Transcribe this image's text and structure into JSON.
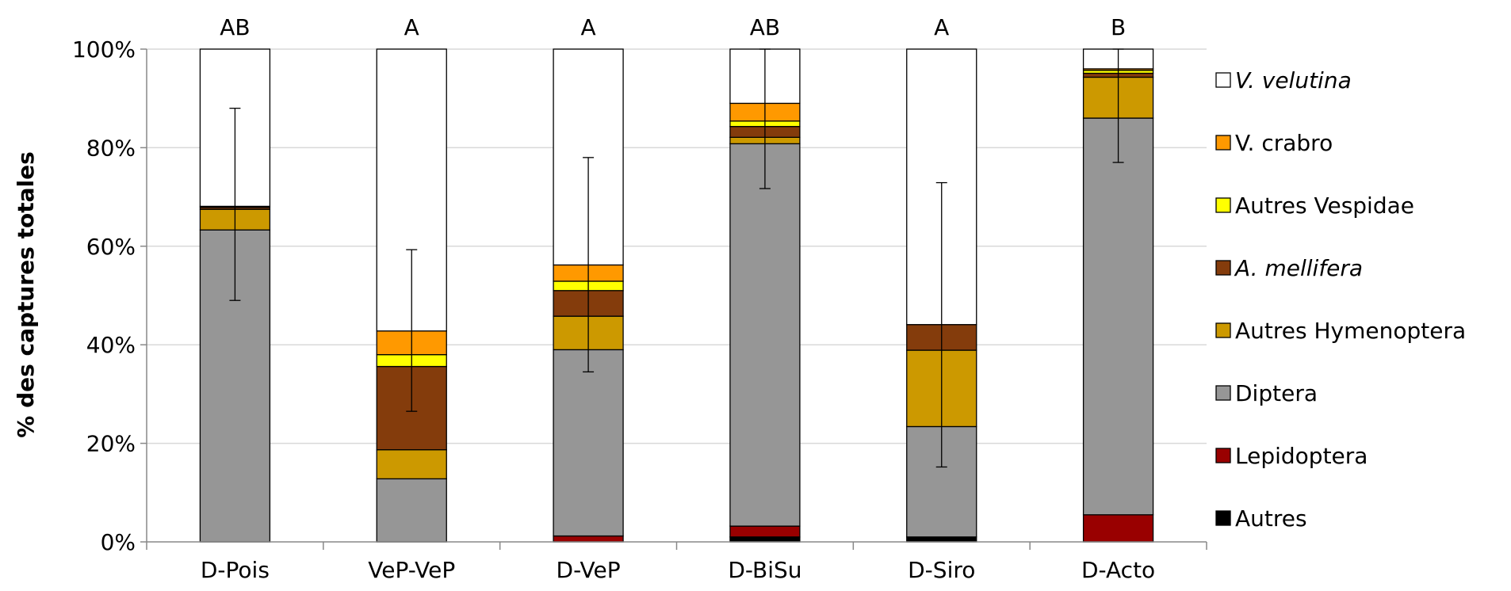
{
  "chart_data": {
    "type": "bar",
    "stacked": true,
    "ylabel": "% des captures totales",
    "xlabel": "",
    "ylim": [
      0,
      100
    ],
    "yticks": [
      "0%",
      "20%",
      "40%",
      "60%",
      "80%",
      "100%"
    ],
    "grid": "horizontal",
    "legend_position": "right",
    "categories": [
      "D-Pois",
      "VeP-VeP",
      "D-VeP",
      "D-BiSu",
      "D-Siro",
      "D-Acto"
    ],
    "significance_letters": [
      "AB",
      "A",
      "A",
      "AB",
      "A",
      "B"
    ],
    "series": [
      {
        "name": "Autres",
        "color": "#000000",
        "italic": false,
        "values": [
          0,
          0,
          0,
          1,
          1,
          0
        ]
      },
      {
        "name": "Lepidoptera",
        "color": "#990000",
        "italic": false,
        "values": [
          0,
          0,
          1.2,
          2.2,
          0,
          5.5
        ]
      },
      {
        "name": "Diptera",
        "color": "#969696",
        "italic": false,
        "values": [
          63.3,
          12.8,
          37.8,
          77.6,
          22.4,
          80.5
        ]
      },
      {
        "name": "Autres Hymenoptera",
        "color": "#CC9900",
        "italic": false,
        "values": [
          4.2,
          5.9,
          6.8,
          1.3,
          15.5,
          8.3
        ]
      },
      {
        "name": "A. mellifera",
        "color": "#843C0C",
        "italic": true,
        "values": [
          0.4,
          16.9,
          5.2,
          2.2,
          5.2,
          0.8
        ]
      },
      {
        "name": "Autres Vespidae",
        "color": "#FFFF00",
        "italic": false,
        "values": [
          0.2,
          2.4,
          1.9,
          1.1,
          0,
          0.6
        ]
      },
      {
        "name": "V. crabro",
        "color": "#FF9900",
        "italic": false,
        "values": [
          0,
          4.8,
          3.3,
          3.6,
          0,
          0.3
        ]
      },
      {
        "name": "V. velutina",
        "color": "#FFFFFF",
        "italic": true,
        "values": [
          31.9,
          57.2,
          43.8,
          11,
          55.9,
          4
        ]
      }
    ],
    "error_bars": [
      {
        "low": 49,
        "high": 88
      },
      {
        "low": 26.5,
        "high": 59.3
      },
      {
        "low": 34.5,
        "high": 78
      },
      {
        "low": 71.7,
        "high": 100
      },
      {
        "low": 15.2,
        "high": 72.9
      },
      {
        "low": 77,
        "high": 100
      }
    ]
  }
}
